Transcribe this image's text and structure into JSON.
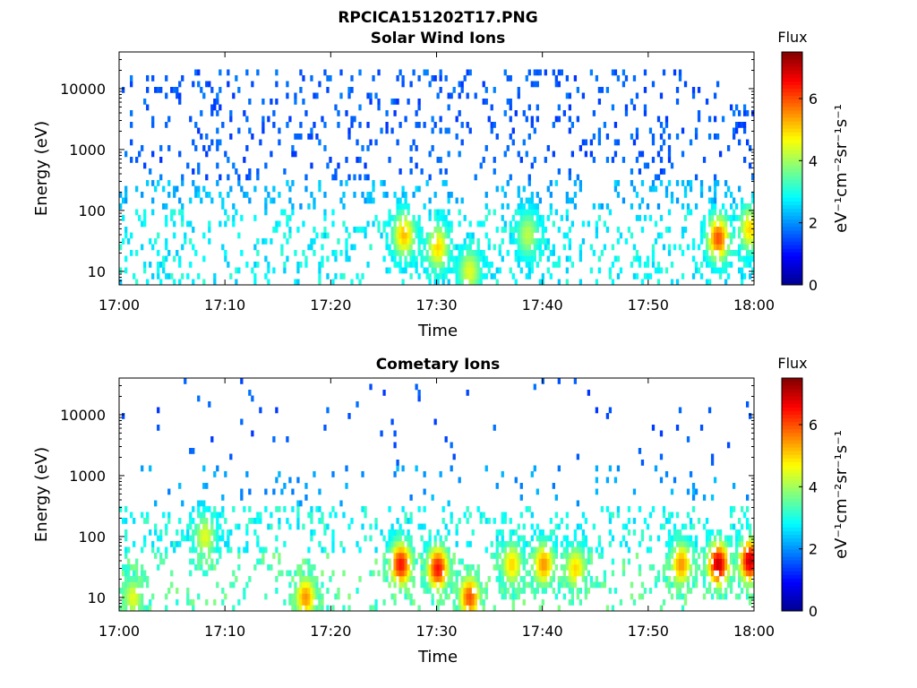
{
  "figure_title": "RPCICA151202T17.PNG",
  "colors": {
    "colormap": [
      "#00008f",
      "#0000ff",
      "#0080ff",
      "#00ffff",
      "#80ff80",
      "#ffff00",
      "#ff8000",
      "#ff0000",
      "#800000"
    ]
  },
  "chart_data": [
    {
      "type": "heatmap",
      "title": "Solar Wind Ions",
      "xlabel": "Time",
      "ylabel": "Energy (eV)",
      "x_ticks": [
        "17:00",
        "17:10",
        "17:20",
        "17:30",
        "17:40",
        "17:50",
        "18:00"
      ],
      "y_ticks": [
        "10",
        "100",
        "1000",
        "10000"
      ],
      "y_scale": "log",
      "xlim_minutes": [
        0,
        60
      ],
      "ylim": [
        6,
        40000
      ],
      "colorbar": {
        "title": "Flux",
        "label": "eV⁻¹cm⁻²sr⁻¹s⁻¹",
        "ticks": [
          "0",
          "2",
          "4",
          "6"
        ],
        "range": [
          0,
          7.5
        ]
      },
      "hotspots": [
        {
          "t": 26.8,
          "e": 40,
          "v": 5.2
        },
        {
          "t": 30.0,
          "e": 25,
          "v": 5.0
        },
        {
          "t": 38.5,
          "e": 40,
          "v": 4.2
        },
        {
          "t": 33.0,
          "e": 10,
          "v": 4.5
        },
        {
          "t": 56.5,
          "e": 35,
          "v": 6.0
        },
        {
          "t": 59.5,
          "e": 50,
          "v": 5.0
        }
      ]
    },
    {
      "type": "heatmap",
      "title": "Cometary Ions",
      "xlabel": "Time",
      "ylabel": "Energy (eV)",
      "x_ticks": [
        "17:00",
        "17:10",
        "17:20",
        "17:30",
        "17:40",
        "17:50",
        "18:00"
      ],
      "y_ticks": [
        "10",
        "100",
        "1000",
        "10000"
      ],
      "y_scale": "log",
      "xlim_minutes": [
        0,
        60
      ],
      "ylim": [
        6,
        40000
      ],
      "colorbar": {
        "title": "Flux",
        "label": "eV⁻¹cm⁻²sr⁻¹s⁻¹",
        "ticks": [
          "0",
          "2",
          "4",
          "6"
        ],
        "range": [
          0,
          7.5
        ]
      },
      "hotspots": [
        {
          "t": 26.5,
          "e": 35,
          "v": 6.5
        },
        {
          "t": 30.0,
          "e": 30,
          "v": 6.5
        },
        {
          "t": 33.0,
          "e": 10,
          "v": 6.0
        },
        {
          "t": 37.0,
          "e": 35,
          "v": 5.0
        },
        {
          "t": 40.0,
          "e": 35,
          "v": 5.5
        },
        {
          "t": 43.0,
          "e": 30,
          "v": 5.0
        },
        {
          "t": 53.0,
          "e": 35,
          "v": 5.5
        },
        {
          "t": 56.5,
          "e": 35,
          "v": 7.0
        },
        {
          "t": 59.5,
          "e": 40,
          "v": 7.0
        },
        {
          "t": 8.0,
          "e": 100,
          "v": 4.5
        },
        {
          "t": 17.5,
          "e": 10,
          "v": 5.5
        },
        {
          "t": 1.2,
          "e": 10,
          "v": 4.5
        }
      ]
    }
  ]
}
